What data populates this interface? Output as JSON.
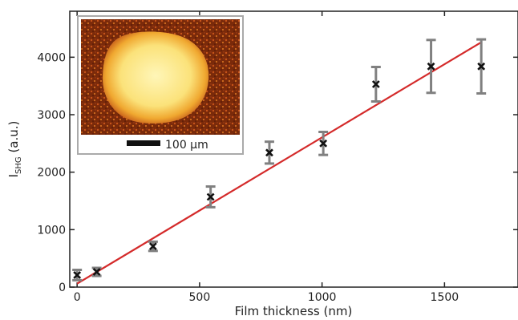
{
  "chart_data": {
    "type": "scatter",
    "title": "",
    "xlabel": "Film thickness (nm)",
    "ylabel_main": "I",
    "ylabel_sub": "SHG",
    "ylabel_unit": " (a.u.)",
    "xlim": [
      -30,
      1800
    ],
    "ylim": [
      0,
      4800
    ],
    "xticks": [
      0,
      500,
      1000,
      1500
    ],
    "yticks": [
      0,
      1000,
      2000,
      3000,
      4000
    ],
    "grid": false,
    "points": [
      {
        "x": 0,
        "y": 210,
        "err": 90
      },
      {
        "x": 80,
        "y": 265,
        "err": 70
      },
      {
        "x": 310,
        "y": 710,
        "err": 80
      },
      {
        "x": 545,
        "y": 1570,
        "err": 180
      },
      {
        "x": 785,
        "y": 2340,
        "err": 190
      },
      {
        "x": 1005,
        "y": 2500,
        "err": 200
      },
      {
        "x": 1220,
        "y": 3530,
        "err": 300
      },
      {
        "x": 1445,
        "y": 3840,
        "err": 460
      },
      {
        "x": 1650,
        "y": 3840,
        "err": 470
      }
    ],
    "fit_line": {
      "x": [
        0,
        1650
      ],
      "y": [
        60,
        4260
      ],
      "color": "#d42a2a"
    },
    "marker_color": "#111111",
    "errorbar_color": "#808080",
    "inset": {
      "type": "microscope-image",
      "scale_bar_label": "100 µm"
    }
  }
}
